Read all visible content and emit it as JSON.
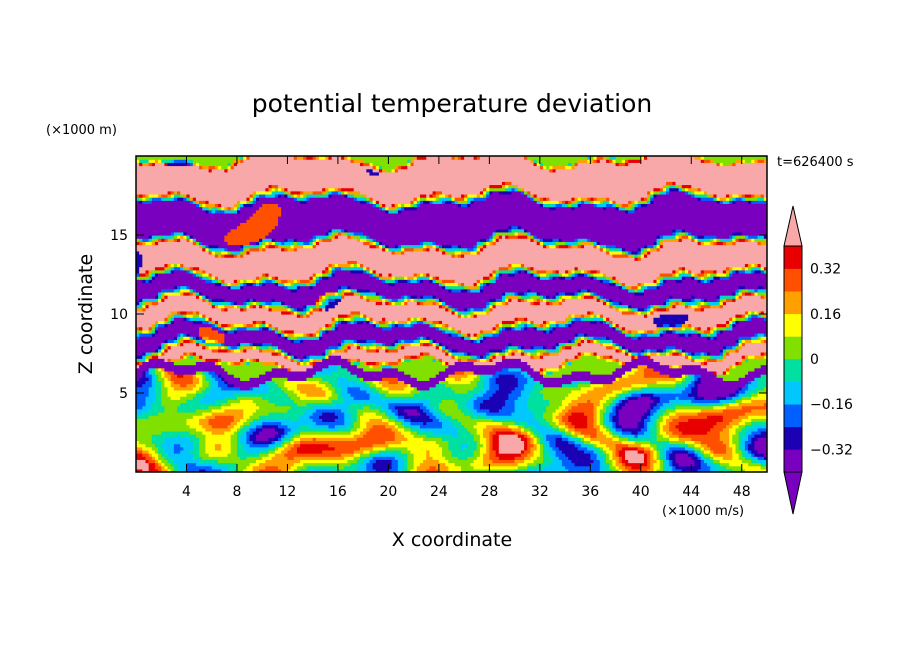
{
  "chart_data": {
    "type": "heatmap",
    "title": "potential temperature deviation",
    "xlabel": "X coordinate",
    "ylabel": "Z coordinate",
    "x_unit": "(×1000 m/s)",
    "y_unit": "(×1000 m)",
    "time_label": "t=626400 s",
    "xlim": [
      0,
      50
    ],
    "ylim": [
      0,
      20
    ],
    "x_ticks": [
      4,
      8,
      12,
      16,
      20,
      24,
      28,
      32,
      36,
      40,
      44,
      48
    ],
    "y_ticks": [
      5,
      10,
      15
    ],
    "colorbar": {
      "levels": [
        -0.4,
        -0.32,
        -0.24,
        -0.16,
        -0.08,
        0,
        0.08,
        0.16,
        0.24,
        0.32,
        0.4
      ],
      "labeled_levels": [
        0.32,
        0.16,
        0,
        -0.16,
        -0.32
      ],
      "colors": [
        "#7a00c0",
        "#1c00b4",
        "#0060ff",
        "#00c8ff",
        "#00e0a0",
        "#80e000",
        "#ffff00",
        "#ffa000",
        "#ff5000",
        "#e80000"
      ],
      "under_color": "#7a00c0",
      "over_color": "#f8a8a8"
    },
    "layers": [
      {
        "z_range": [
          17.3,
          20
        ],
        "value": 0.45
      },
      {
        "z_range": [
          14.5,
          17.3
        ],
        "value": -0.45
      },
      {
        "z_range": [
          12.3,
          14.5
        ],
        "value": 0.45
      },
      {
        "z_range": [
          10.8,
          12.3
        ],
        "value": -0.45
      },
      {
        "z_range": [
          9.2,
          10.8
        ],
        "value": 0.45
      },
      {
        "z_range": [
          7.8,
          9.2
        ],
        "value": -0.45
      },
      {
        "z_range": [
          6.6,
          7.8
        ],
        "value": 0.45
      },
      {
        "z_range": [
          0,
          6.6
        ],
        "value": "turbulent mixed layer (-0.45 to 0.45)"
      }
    ]
  }
}
